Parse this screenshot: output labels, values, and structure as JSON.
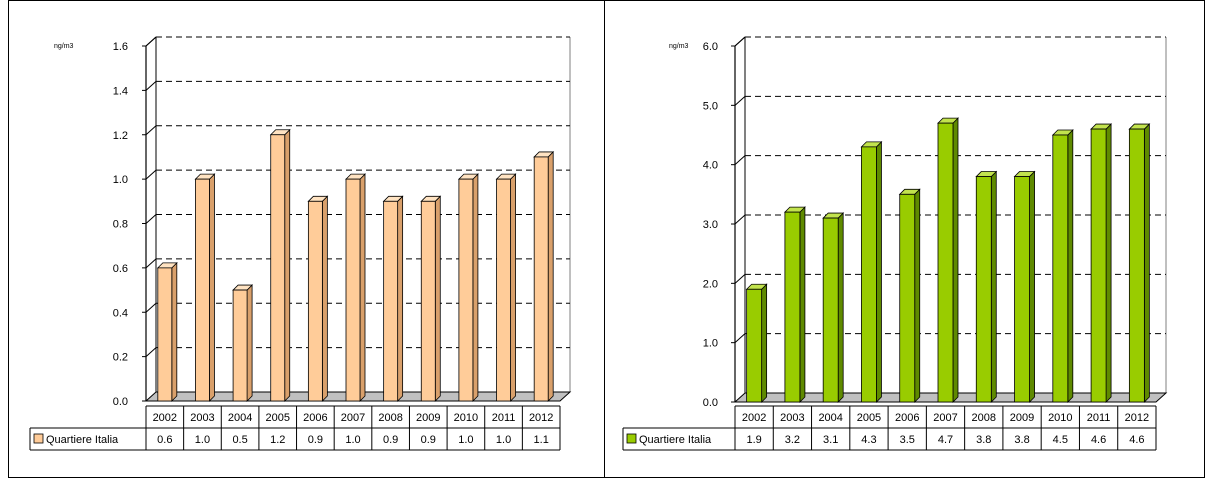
{
  "chart_data": [
    {
      "type": "bar",
      "unit_label": "ng/m3",
      "categories": [
        "2002",
        "2003",
        "2004",
        "2005",
        "2006",
        "2007",
        "2008",
        "2009",
        "2010",
        "2011",
        "2012"
      ],
      "series": [
        {
          "name": "Quartiere Italia",
          "values": [
            0.6,
            1.0,
            0.5,
            1.2,
            0.9,
            1.0,
            0.9,
            0.9,
            1.0,
            1.0,
            1.1
          ]
        }
      ],
      "value_labels": [
        "0.6",
        "1.0",
        "0.5",
        "1.2",
        "0.9",
        "1.0",
        "0.9",
        "0.9",
        "1.0",
        "1.0",
        "1.1"
      ],
      "ylim": [
        0,
        1.6
      ],
      "yticks": [
        "0.0",
        "0.2",
        "0.4",
        "0.6",
        "0.8",
        "1.0",
        "1.2",
        "1.4",
        "1.6"
      ],
      "grid": true,
      "legend_placement": "bottom-left, data table",
      "colors": {
        "front": "#FFCC99",
        "side": "#D9A06B",
        "top": "#FFE3C2"
      }
    },
    {
      "type": "bar",
      "unit_label": "ng/m3",
      "categories": [
        "2002",
        "2003",
        "2004",
        "2005",
        "2006",
        "2007",
        "2008",
        "2009",
        "2010",
        "2011",
        "2012"
      ],
      "series": [
        {
          "name": "Quartiere Italia",
          "values": [
            1.9,
            3.2,
            3.1,
            4.3,
            3.5,
            4.7,
            3.8,
            3.8,
            4.5,
            4.6,
            4.6
          ]
        }
      ],
      "value_labels": [
        "1.9",
        "3.2",
        "3.1",
        "4.3",
        "3.5",
        "4.7",
        "3.8",
        "3.8",
        "4.5",
        "4.6",
        "4.6"
      ],
      "ylim": [
        0,
        6
      ],
      "yticks": [
        "0.0",
        "1.0",
        "2.0",
        "3.0",
        "4.0",
        "5.0",
        "6.0"
      ],
      "grid": true,
      "legend_placement": "bottom-left, data table",
      "colors": {
        "front": "#99CC00",
        "side": "#5F8A00",
        "top": "#C2E34D"
      }
    }
  ]
}
